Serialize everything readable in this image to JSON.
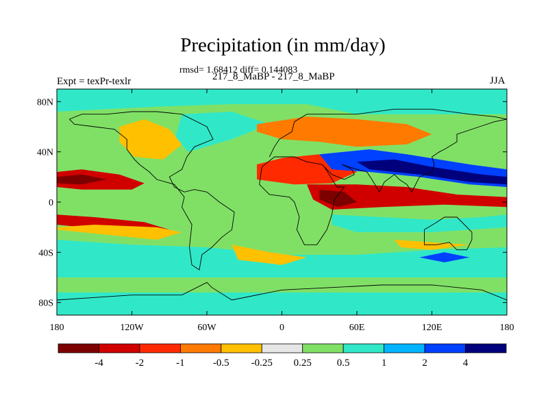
{
  "title": "Precipitation (in mm/day)",
  "stats_line": "rmsd= 1.68412 diff= 0.144083",
  "subtitle": "217_8_MaBP - 217_8_MaBP",
  "left_label": "Expt = texPr-texlr",
  "right_label": "JJA",
  "colors": {
    "background": "#ffffff",
    "neutral": "#e6e6e6",
    "coast": "#000000"
  },
  "chart_data": {
    "type": "heatmap",
    "x_axis": {
      "range": [
        -180,
        180
      ],
      "ticks": [
        -180,
        -120,
        -60,
        0,
        60,
        120,
        180
      ],
      "tick_labels": [
        "180",
        "120W",
        "60W",
        "0",
        "60E",
        "120E",
        "180"
      ]
    },
    "y_axis": {
      "range": [
        -90,
        90
      ],
      "ticks": [
        80,
        40,
        0,
        -40,
        -80
      ],
      "tick_labels": [
        "80N",
        "40N",
        "0",
        "40S",
        "80S"
      ]
    },
    "colorbar": {
      "levels": [
        -4,
        -2,
        -1,
        -0.5,
        -0.25,
        0.25,
        0.5,
        1,
        2,
        4
      ],
      "level_labels": [
        "-4",
        "-2",
        "-1",
        "-0.5",
        "-0.25",
        "0.25",
        "0.5",
        "1",
        "2",
        "4"
      ],
      "colors": [
        "#7d0000",
        "#d00000",
        "#ff2a00",
        "#ff7a00",
        "#ffc000",
        "#e6e6e6",
        "#80e066",
        "#30e8c8",
        "#00b4ff",
        "#0040ff",
        "#00007d"
      ]
    },
    "background_class": 6,
    "regions": [
      {
        "name": "arctic-band",
        "class": 7,
        "points": [
          [
            -180,
            90
          ],
          [
            180,
            90
          ],
          [
            180,
            70
          ],
          [
            60,
            70
          ],
          [
            20,
            78
          ],
          [
            -40,
            78
          ],
          [
            -100,
            76
          ],
          [
            -180,
            72
          ]
        ]
      },
      {
        "name": "north-atlantic",
        "class": 7,
        "points": [
          [
            -80,
            70
          ],
          [
            -40,
            72
          ],
          [
            -10,
            62
          ],
          [
            -40,
            50
          ],
          [
            -75,
            40
          ],
          [
            -85,
            52
          ]
        ]
      },
      {
        "name": "north-america-dry",
        "class": 4,
        "points": [
          [
            -130,
            60
          ],
          [
            -110,
            66
          ],
          [
            -90,
            58
          ],
          [
            -80,
            46
          ],
          [
            -95,
            34
          ],
          [
            -118,
            36
          ],
          [
            -130,
            48
          ]
        ]
      },
      {
        "name": "eurasia-dry",
        "class": 3,
        "points": [
          [
            -20,
            62
          ],
          [
            20,
            68
          ],
          [
            60,
            66
          ],
          [
            100,
            62
          ],
          [
            120,
            54
          ],
          [
            100,
            46
          ],
          [
            60,
            44
          ],
          [
            30,
            48
          ],
          [
            0,
            50
          ],
          [
            -20,
            56
          ]
        ]
      },
      {
        "name": "sahara-red",
        "class": 2,
        "points": [
          [
            -20,
            30
          ],
          [
            0,
            35
          ],
          [
            30,
            38
          ],
          [
            50,
            34
          ],
          [
            60,
            24
          ],
          [
            40,
            15
          ],
          [
            10,
            14
          ],
          [
            -20,
            18
          ]
        ]
      },
      {
        "name": "pacific-itcz-north",
        "class": 1,
        "points": [
          [
            -180,
            24
          ],
          [
            -160,
            26
          ],
          [
            -130,
            22
          ],
          [
            -110,
            15
          ],
          [
            -120,
            10
          ],
          [
            -160,
            10
          ],
          [
            -180,
            12
          ]
        ]
      },
      {
        "name": "pacific-itcz-north-core",
        "class": 0,
        "points": [
          [
            -180,
            20
          ],
          [
            -160,
            22
          ],
          [
            -140,
            18
          ],
          [
            -160,
            14
          ],
          [
            -180,
            15
          ]
        ]
      },
      {
        "name": "pacific-itcz-south",
        "class": 1,
        "points": [
          [
            -180,
            -10
          ],
          [
            -150,
            -12
          ],
          [
            -110,
            -16
          ],
          [
            -90,
            -22
          ],
          [
            -120,
            -24
          ],
          [
            -160,
            -20
          ],
          [
            -180,
            -18
          ]
        ]
      },
      {
        "name": "pacific-south-orange",
        "class": 4,
        "points": [
          [
            -180,
            -22
          ],
          [
            -140,
            -26
          ],
          [
            -100,
            -30
          ],
          [
            -80,
            -24
          ],
          [
            -100,
            -20
          ],
          [
            -150,
            -18
          ],
          [
            -180,
            -20
          ]
        ]
      },
      {
        "name": "southern-ocean-cyan",
        "class": 7,
        "points": [
          [
            -180,
            -30
          ],
          [
            -120,
            -34
          ],
          [
            -60,
            -36
          ],
          [
            0,
            -42
          ],
          [
            60,
            -42
          ],
          [
            120,
            -38
          ],
          [
            180,
            -36
          ],
          [
            180,
            -60
          ],
          [
            -180,
            -60
          ]
        ]
      },
      {
        "name": "southern-ocean-green",
        "class": 6,
        "points": [
          [
            -180,
            -60
          ],
          [
            180,
            -60
          ],
          [
            180,
            -72
          ],
          [
            -180,
            -72
          ]
        ]
      },
      {
        "name": "antarctic-cyan",
        "class": 7,
        "points": [
          [
            -180,
            -72
          ],
          [
            180,
            -72
          ],
          [
            180,
            -90
          ],
          [
            -180,
            -90
          ]
        ]
      },
      {
        "name": "south-atlantic-orange",
        "class": 4,
        "points": [
          [
            -40,
            -34
          ],
          [
            -10,
            -40
          ],
          [
            20,
            -44
          ],
          [
            0,
            -50
          ],
          [
            -35,
            -46
          ]
        ]
      },
      {
        "name": "indian-ocean-red",
        "class": 1,
        "points": [
          [
            20,
            14
          ],
          [
            60,
            14
          ],
          [
            100,
            12
          ],
          [
            140,
            6
          ],
          [
            180,
            4
          ],
          [
            180,
            -4
          ],
          [
            130,
            -2
          ],
          [
            80,
            -4
          ],
          [
            40,
            -6
          ],
          [
            25,
            2
          ]
        ]
      },
      {
        "name": "indian-ocean-dark",
        "class": 0,
        "points": [
          [
            30,
            10
          ],
          [
            50,
            8
          ],
          [
            60,
            0
          ],
          [
            45,
            -4
          ],
          [
            30,
            2
          ]
        ]
      },
      {
        "name": "south-indian-cyan",
        "class": 7,
        "points": [
          [
            40,
            -10
          ],
          [
            80,
            -12
          ],
          [
            120,
            -14
          ],
          [
            160,
            -12
          ],
          [
            180,
            -10
          ],
          [
            180,
            -20
          ],
          [
            120,
            -24
          ],
          [
            60,
            -24
          ],
          [
            40,
            -18
          ]
        ]
      },
      {
        "name": "asia-monsoon-blue",
        "class": 9,
        "points": [
          [
            30,
            38
          ],
          [
            70,
            42
          ],
          [
            100,
            38
          ],
          [
            150,
            30
          ],
          [
            180,
            26
          ],
          [
            180,
            12
          ],
          [
            150,
            14
          ],
          [
            110,
            20
          ],
          [
            70,
            24
          ],
          [
            40,
            26
          ]
        ]
      },
      {
        "name": "asia-monsoon-navy",
        "class": 10,
        "points": [
          [
            60,
            32
          ],
          [
            90,
            34
          ],
          [
            120,
            28
          ],
          [
            160,
            22
          ],
          [
            180,
            20
          ],
          [
            180,
            14
          ],
          [
            150,
            16
          ],
          [
            110,
            22
          ],
          [
            70,
            26
          ]
        ]
      },
      {
        "name": "south-ocean-blue",
        "class": 9,
        "points": [
          [
            110,
            -44
          ],
          [
            130,
            -40
          ],
          [
            150,
            -44
          ],
          [
            130,
            -48
          ]
        ]
      },
      {
        "name": "south-pacific-orange",
        "class": 4,
        "points": [
          [
            90,
            -30
          ],
          [
            120,
            -32
          ],
          [
            150,
            -34
          ],
          [
            120,
            -38
          ],
          [
            95,
            -36
          ]
        ]
      }
    ],
    "coastline_segments": [
      [
        [
          -170,
          66
        ],
        [
          -160,
          70
        ],
        [
          -140,
          70
        ],
        [
          -120,
          72
        ],
        [
          -100,
          72
        ],
        [
          -80,
          70
        ],
        [
          -60,
          60
        ],
        [
          -55,
          50
        ],
        [
          -70,
          44
        ],
        [
          -76,
          36
        ],
        [
          -80,
          26
        ],
        [
          -90,
          20
        ],
        [
          -86,
          12
        ],
        [
          -78,
          8
        ],
        [
          -70,
          10
        ],
        [
          -60,
          8
        ],
        [
          -50,
          0
        ],
        [
          -38,
          -8
        ],
        [
          -40,
          -22
        ],
        [
          -48,
          -28
        ],
        [
          -56,
          -36
        ],
        [
          -64,
          -42
        ],
        [
          -66,
          -54
        ],
        [
          -72,
          -50
        ],
        [
          -74,
          -36
        ],
        [
          -72,
          -18
        ],
        [
          -80,
          -4
        ],
        [
          -78,
          4
        ],
        [
          -86,
          14
        ],
        [
          -100,
          18
        ],
        [
          -106,
          24
        ],
        [
          -114,
          30
        ],
        [
          -118,
          34
        ],
        [
          -124,
          42
        ],
        [
          -124,
          50
        ],
        [
          -134,
          58
        ],
        [
          -150,
          60
        ],
        [
          -166,
          62
        ],
        [
          -170,
          66
        ]
      ],
      [
        [
          -10,
          36
        ],
        [
          -6,
          44
        ],
        [
          -2,
          50
        ],
        [
          8,
          56
        ],
        [
          10,
          64
        ],
        [
          20,
          70
        ],
        [
          40,
          70
        ],
        [
          60,
          70
        ],
        [
          90,
          74
        ],
        [
          120,
          74
        ],
        [
          150,
          70
        ],
        [
          170,
          68
        ],
        [
          180,
          66
        ]
      ],
      [
        [
          -16,
          28
        ],
        [
          -18,
          14
        ],
        [
          -10,
          6
        ],
        [
          6,
          4
        ],
        [
          10,
          0
        ],
        [
          14,
          -12
        ],
        [
          12,
          -22
        ],
        [
          18,
          -34
        ],
        [
          28,
          -34
        ],
        [
          36,
          -22
        ],
        [
          40,
          -10
        ],
        [
          42,
          2
        ],
        [
          50,
          12
        ],
        [
          44,
          12
        ],
        [
          34,
          28
        ],
        [
          32,
          30
        ],
        [
          20,
          32
        ],
        [
          10,
          36
        ],
        [
          -6,
          36
        ],
        [
          -16,
          28
        ]
      ],
      [
        [
          34,
          28
        ],
        [
          40,
          22
        ],
        [
          50,
          18
        ],
        [
          58,
          22
        ],
        [
          56,
          26
        ],
        [
          48,
          30
        ],
        [
          60,
          26
        ],
        [
          68,
          24
        ],
        [
          72,
          18
        ],
        [
          78,
          8
        ],
        [
          82,
          16
        ],
        [
          90,
          22
        ],
        [
          94,
          18
        ],
        [
          100,
          14
        ],
        [
          104,
          8
        ],
        [
          106,
          12
        ],
        [
          110,
          20
        ],
        [
          120,
          24
        ],
        [
          122,
          30
        ],
        [
          120,
          36
        ],
        [
          126,
          40
        ],
        [
          130,
          42
        ],
        [
          140,
          48
        ],
        [
          140,
          54
        ],
        [
          158,
          60
        ],
        [
          170,
          64
        ],
        [
          180,
          66
        ]
      ],
      [
        [
          114,
          -22
        ],
        [
          114,
          -34
        ],
        [
          124,
          -34
        ],
        [
          134,
          -32
        ],
        [
          140,
          -38
        ],
        [
          148,
          -38
        ],
        [
          152,
          -30
        ],
        [
          152,
          -24
        ],
        [
          146,
          -18
        ],
        [
          140,
          -12
        ],
        [
          136,
          -12
        ],
        [
          130,
          -12
        ],
        [
          124,
          -16
        ],
        [
          114,
          -22
        ]
      ],
      [
        [
          -180,
          -78
        ],
        [
          -150,
          -76
        ],
        [
          -120,
          -74
        ],
        [
          -80,
          -74
        ],
        [
          -60,
          -64
        ],
        [
          -56,
          -68
        ],
        [
          -40,
          -78
        ],
        [
          0,
          -70
        ],
        [
          40,
          -68
        ],
        [
          80,
          -66
        ],
        [
          120,
          -66
        ],
        [
          160,
          -70
        ],
        [
          180,
          -78
        ]
      ]
    ]
  }
}
